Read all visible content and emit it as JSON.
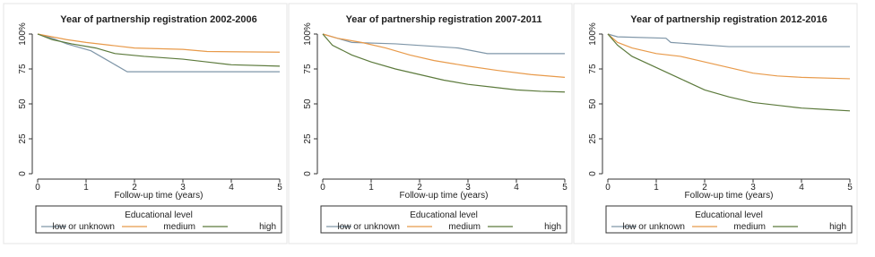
{
  "chart_data": [
    {
      "type": "line",
      "title": "Year of partnership registration 2002-2006",
      "x_label": "Follow-up time (years)",
      "legend_title": "Educational level",
      "xlim": [
        0,
        5
      ],
      "ylim": [
        0,
        100
      ],
      "xticks": [
        0,
        1,
        2,
        3,
        4,
        5
      ],
      "yticks": [
        0,
        25,
        50,
        75,
        {
          "value": 100,
          "label": "100%"
        }
      ],
      "series": [
        {
          "name": "low or unknown",
          "color": "#7f96a8",
          "x": [
            0,
            0.3,
            0.6,
            1.1,
            1.4,
            1.6,
            1.85,
            5
          ],
          "values": [
            100,
            97,
            93,
            88,
            82,
            78,
            73,
            73
          ]
        },
        {
          "name": "medium",
          "color": "#e89a4a",
          "x": [
            0,
            0.3,
            0.6,
            1,
            1.5,
            2,
            3,
            3.5,
            5
          ],
          "values": [
            100,
            98,
            96,
            94,
            92,
            90,
            89,
            87.5,
            87
          ]
        },
        {
          "name": "high",
          "color": "#5c7a3c",
          "x": [
            0,
            0.3,
            0.7,
            1.2,
            1.6,
            2.2,
            3,
            3.5,
            4,
            5
          ],
          "values": [
            100,
            96,
            93,
            90,
            86,
            84,
            82,
            80,
            78,
            77
          ]
        }
      ]
    },
    {
      "type": "line",
      "title": "Year of partnership registration 2007-2011",
      "x_label": "Follow-up time (years)",
      "legend_title": "Educational level",
      "xlim": [
        0,
        5
      ],
      "ylim": [
        0,
        100
      ],
      "xticks": [
        0,
        1,
        2,
        3,
        4,
        5
      ],
      "yticks": [
        0,
        25,
        50,
        75,
        {
          "value": 100,
          "label": "100%"
        }
      ],
      "series": [
        {
          "name": "low or unknown",
          "color": "#7f96a8",
          "x": [
            0,
            0.3,
            0.6,
            1.5,
            2.8,
            3.4,
            5
          ],
          "values": [
            100,
            97,
            94,
            93,
            90,
            86,
            86
          ]
        },
        {
          "name": "medium",
          "color": "#e89a4a",
          "x": [
            0,
            0.3,
            0.8,
            1.3,
            1.8,
            2.3,
            3,
            3.6,
            4.3,
            5
          ],
          "values": [
            100,
            97,
            94,
            90,
            85,
            81,
            77,
            74,
            71,
            69
          ]
        },
        {
          "name": "high",
          "color": "#5c7a3c",
          "x": [
            0,
            0.2,
            0.6,
            1,
            1.5,
            2,
            2.5,
            3,
            3.5,
            4,
            4.5,
            5
          ],
          "values": [
            100,
            92,
            85,
            80,
            75,
            71,
            67,
            64,
            62,
            60,
            59,
            58.5
          ]
        }
      ]
    },
    {
      "type": "line",
      "title": "Year of partnership registration 2012-2016",
      "x_label": "Follow-up time (years)",
      "legend_title": "Educational level",
      "xlim": [
        0,
        5
      ],
      "ylim": [
        0,
        100
      ],
      "xticks": [
        0,
        1,
        2,
        3,
        4,
        5
      ],
      "yticks": [
        0,
        25,
        50,
        75,
        {
          "value": 100,
          "label": "100%"
        }
      ],
      "series": [
        {
          "name": "low or unknown",
          "color": "#7f96a8",
          "x": [
            0,
            0.2,
            1.2,
            1.3,
            2.5,
            5
          ],
          "values": [
            100,
            98,
            97,
            94,
            91,
            91
          ]
        },
        {
          "name": "medium",
          "color": "#e89a4a",
          "x": [
            0,
            0.2,
            0.5,
            1,
            1.5,
            2,
            2.5,
            3,
            3.5,
            4,
            5
          ],
          "values": [
            100,
            94,
            90,
            86,
            84,
            80,
            76,
            72,
            70,
            69,
            68
          ]
        },
        {
          "name": "high",
          "color": "#5c7a3c",
          "x": [
            0,
            0.2,
            0.5,
            1,
            1.5,
            2,
            2.5,
            3,
            3.5,
            4,
            4.5,
            5
          ],
          "values": [
            100,
            92,
            84,
            76,
            68,
            60,
            55,
            51,
            49,
            47,
            46,
            45
          ]
        }
      ]
    }
  ]
}
